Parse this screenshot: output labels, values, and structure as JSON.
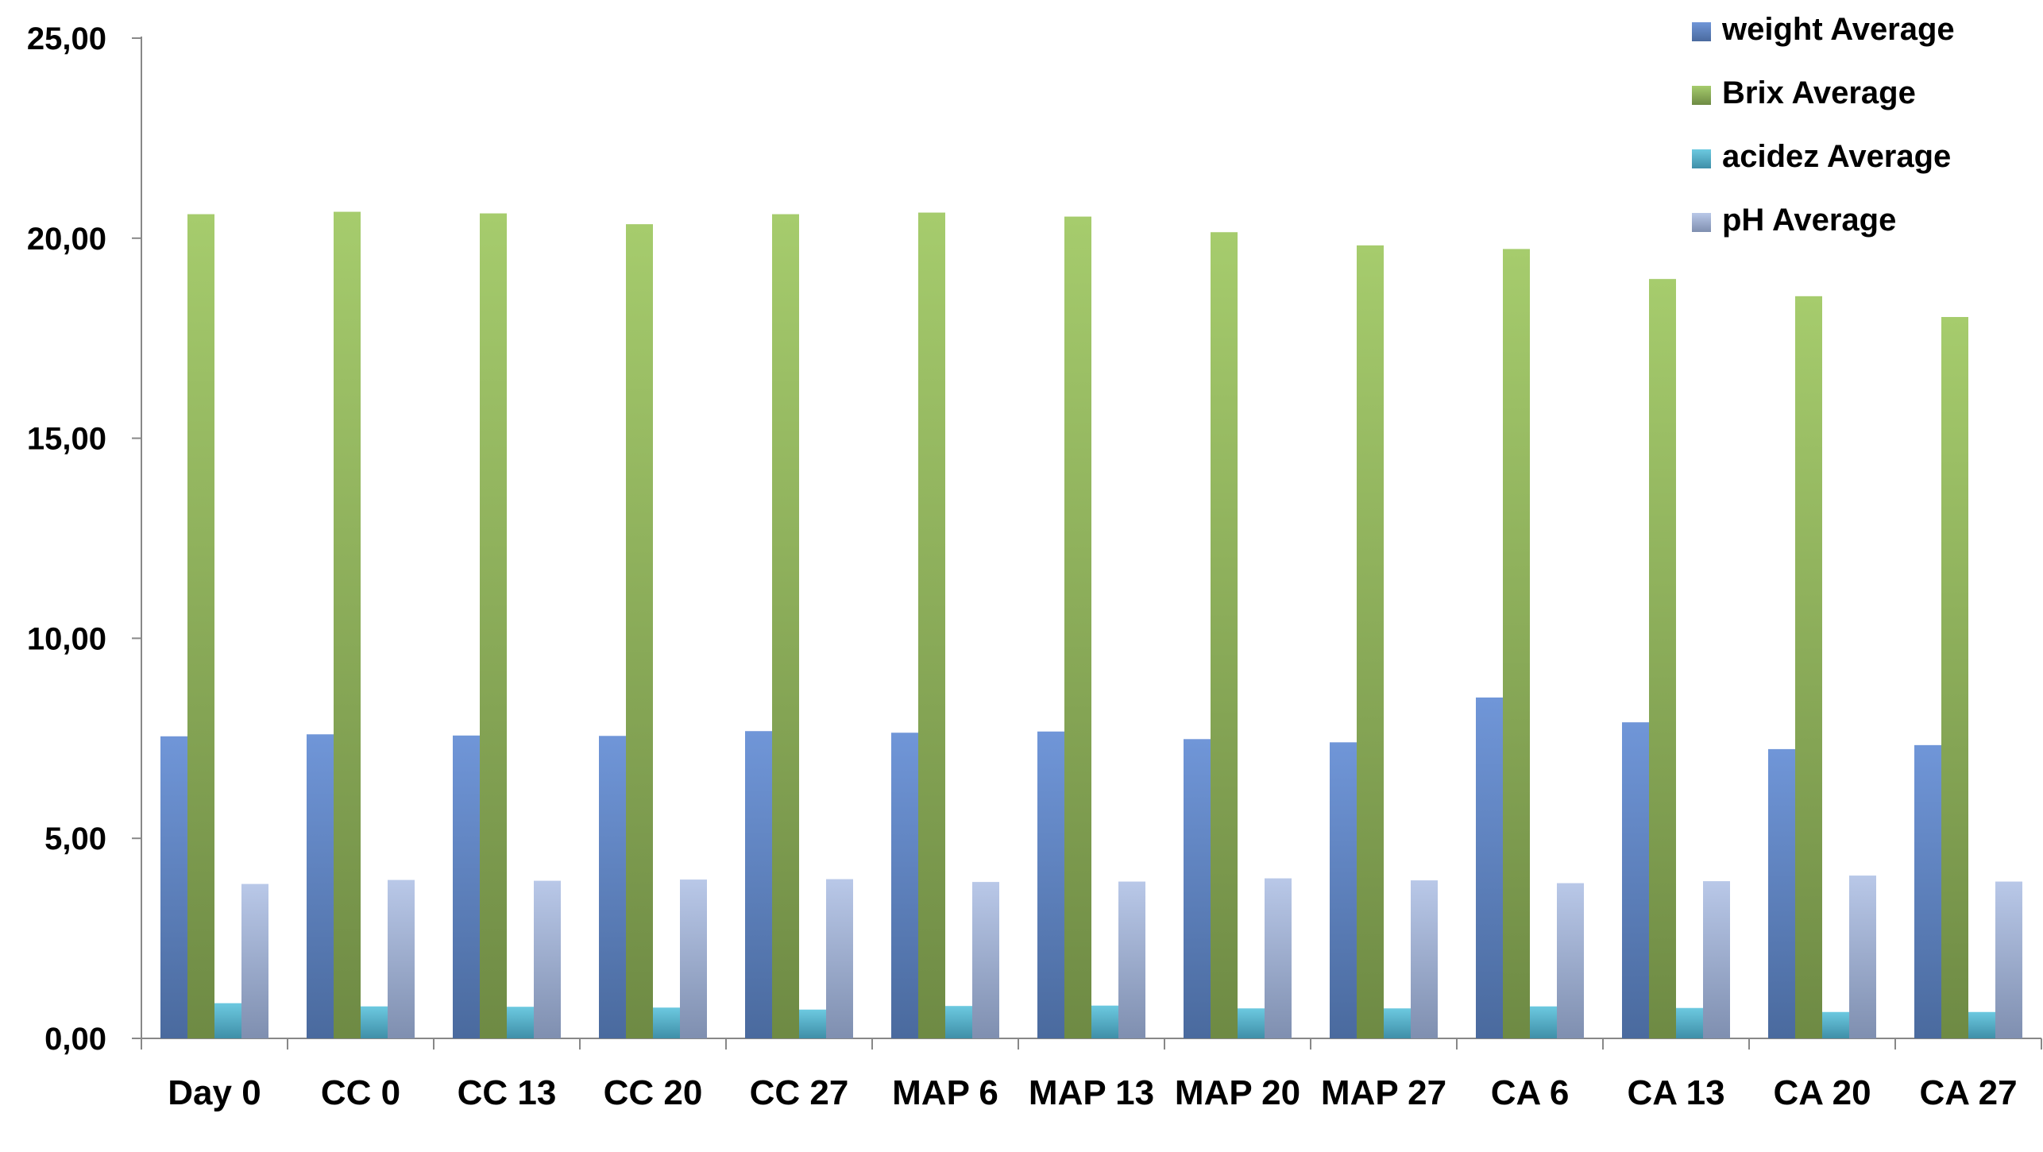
{
  "chart_data": {
    "type": "bar",
    "title": "",
    "xlabel": "",
    "ylabel": "",
    "ylim": [
      0,
      25
    ],
    "yticks": [
      "0,00",
      "5,00",
      "10,00",
      "15,00",
      "20,00",
      "25,00"
    ],
    "grid": false,
    "legend_position": "top-right",
    "categories": [
      "Day 0",
      "CC 0",
      "CC 13",
      "CC 20",
      "CC 27",
      "MAP 6",
      "MAP 13",
      "MAP 20",
      "MAP 27",
      "CA 6",
      "CA 13",
      "CA 20",
      "CA 27"
    ],
    "series": [
      {
        "name": "weight Average",
        "color": "#5b7fbe",
        "values": [
          7.55,
          7.6,
          7.57,
          7.56,
          7.68,
          7.64,
          7.67,
          7.48,
          7.4,
          8.52,
          7.9,
          7.23,
          7.33
        ]
      },
      {
        "name": "Brix Average",
        "color": "#8fb255",
        "values": [
          20.6,
          20.66,
          20.62,
          20.35,
          20.6,
          20.64,
          20.54,
          20.15,
          19.82,
          19.73,
          18.98,
          18.55,
          18.03
        ]
      },
      {
        "name": "acidez Average",
        "color": "#4bacc6",
        "values": [
          0.88,
          0.8,
          0.79,
          0.77,
          0.72,
          0.81,
          0.82,
          0.75,
          0.75,
          0.8,
          0.76,
          0.66,
          0.66
        ]
      },
      {
        "name": "pH Average",
        "color": "#a2b3d6",
        "values": [
          3.86,
          3.96,
          3.94,
          3.97,
          3.98,
          3.91,
          3.92,
          4.0,
          3.95,
          3.88,
          3.93,
          4.07,
          3.92
        ]
      }
    ]
  }
}
